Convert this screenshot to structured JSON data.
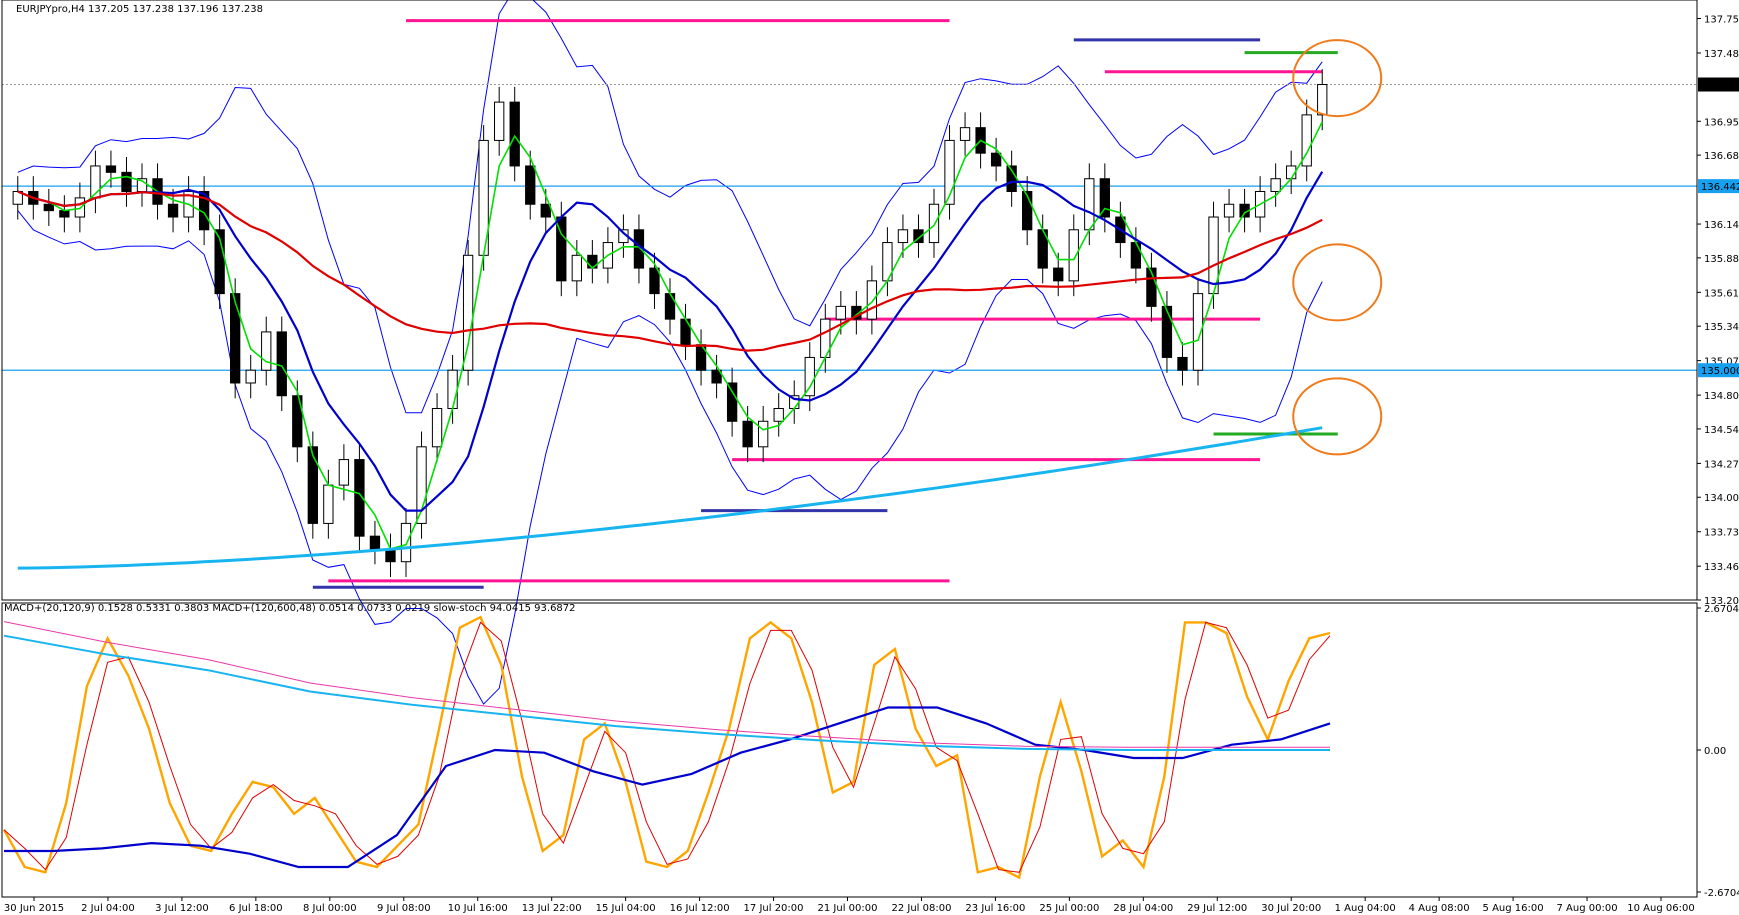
{
  "header": {
    "main": "EURJPYpro,H4  137.205 137.238 137.196 137.238",
    "sub": "MACD+(20,120,9) 0.1528 0.5331 0.3803  MACD+(120,600,48) 0.0514 0.0733 0.0219  slow-stoch 94.0415 93.6872"
  },
  "price_axis": {
    "ticks": [
      "137.755",
      "137.485",
      "136.950",
      "136.685",
      "136.145",
      "135.880",
      "135.610",
      "135.345",
      "135.075",
      "134.805",
      "134.540",
      "134.270",
      "134.005",
      "133.735",
      "133.465",
      "133.200"
    ],
    "tick_values": [
      137.755,
      137.485,
      136.95,
      136.685,
      136.145,
      135.88,
      135.61,
      135.345,
      135.075,
      134.805,
      134.54,
      134.27,
      134.005,
      133.735,
      133.465,
      133.2
    ],
    "current_price_label": "137.238",
    "level_high_label": "136.442",
    "level_low_label": "135.000"
  },
  "indicator_axis": {
    "ticks": [
      "2.6704",
      "0.00",
      "-2.6704"
    ]
  },
  "time_axis": {
    "labels": [
      "30 Jun 2015",
      "2 Jul 04:00",
      "3 Jul 12:00",
      "6 Jul 18:00",
      "8 Jul 00:00",
      "9 Jul 08:00",
      "10 Jul 16:00",
      "13 Jul 22:00",
      "15 Jul 04:00",
      "16 Jul 12:00",
      "17 Jul 20:00",
      "21 Jul 00:00",
      "22 Jul 08:00",
      "23 Jul 16:00",
      "25 Jul 00:00",
      "28 Jul 04:00",
      "29 Jul 12:00",
      "30 Jul 20:00",
      "1 Aug 04:00",
      "4 Aug 08:00",
      "5 Aug 16:00",
      "7 Aug 00:00",
      "10 Aug 06:00"
    ]
  },
  "colors": {
    "bollinger": "#0000ff",
    "ema_fast": "#00e000",
    "ema_mid": "#0000cc",
    "sma_slow": "#e00000",
    "sma_very_slow": "#18b4f0",
    "support_resistance": "#ff1493",
    "swing_blue": "#3333aa",
    "swing_green": "#22aa22",
    "highlight_circle": "#f07a1a",
    "stoch": "#ffa500",
    "stoch_signal": "#e00000",
    "macd_fast": "#0000cc",
    "macd_slow": "#18b4f0",
    "macd_slow_signal": "#e838a8"
  },
  "chart_data": [
    {
      "type": "candlestick",
      "symbol": "EURJPYpro",
      "timeframe": "H4",
      "ylim": [
        133.2,
        137.9
      ],
      "horizontal_levels": [
        136.442,
        135.0
      ],
      "current_price": 137.238,
      "candles_close": [
        136.4,
        136.3,
        136.25,
        136.2,
        136.35,
        136.6,
        136.55,
        136.4,
        136.5,
        136.3,
        136.2,
        136.4,
        136.1,
        135.6,
        134.9,
        135.0,
        135.3,
        134.8,
        134.4,
        133.8,
        134.1,
        134.3,
        133.7,
        133.6,
        133.5,
        133.8,
        134.4,
        134.7,
        135.0,
        135.9,
        136.8,
        137.1,
        136.6,
        136.3,
        136.2,
        135.7,
        135.9,
        135.8,
        136.0,
        136.1,
        135.8,
        135.6,
        135.4,
        135.2,
        135.0,
        134.9,
        134.6,
        134.4,
        134.6,
        134.7,
        134.8,
        135.1,
        135.4,
        135.5,
        135.4,
        135.7,
        136.0,
        136.1,
        136.0,
        136.3,
        136.8,
        136.9,
        136.7,
        136.6,
        136.4,
        136.1,
        135.8,
        135.7,
        136.1,
        136.5,
        136.2,
        136.0,
        135.8,
        135.5,
        135.1,
        135.0,
        135.6,
        136.2,
        136.3,
        136.2,
        136.4,
        136.5,
        136.6,
        137.0,
        137.238
      ]
    },
    {
      "type": "line",
      "name": "slow-stoch",
      "ylim": [
        -2.6704,
        2.6704
      ],
      "values": [
        -1.5,
        -2.2,
        -2.3,
        -1.0,
        1.2,
        2.1,
        1.4,
        0.4,
        -1.0,
        -1.8,
        -1.9,
        -1.2,
        -0.6,
        -0.7,
        -1.2,
        -0.9,
        -1.5,
        -2.1,
        -2.2,
        -1.8,
        -1.4,
        0.4,
        2.3,
        2.5,
        1.6,
        -0.5,
        -1.9,
        -1.6,
        0.2,
        0.5,
        -0.6,
        -2.1,
        -2.2,
        -1.9,
        -0.8,
        0.4,
        2.1,
        2.4,
        2.1,
        0.9,
        -0.8,
        -0.6,
        1.6,
        1.9,
        0.4,
        -0.3,
        -0.1,
        -2.3,
        -2.2,
        -2.4,
        -0.5,
        0.9,
        -0.4,
        -2.0,
        -1.7,
        -2.2,
        -0.5,
        2.4,
        2.4,
        2.2,
        1.0,
        0.2,
        1.3,
        2.1,
        2.2
      ]
    },
    {
      "type": "line",
      "name": "MACD+(20,120,9)",
      "ylim": [
        -2.6704,
        2.6704
      ],
      "values": [
        -1.9,
        -1.9,
        -1.85,
        -1.75,
        -1.8,
        -1.95,
        -2.2,
        -2.2,
        -1.6,
        -0.3,
        0.0,
        -0.05,
        -0.4,
        -0.65,
        -0.45,
        -0.05,
        0.2,
        0.5,
        0.8,
        0.8,
        0.5,
        0.1,
        0.0,
        -0.15,
        -0.15,
        0.1,
        0.2,
        0.5
      ]
    },
    {
      "type": "line",
      "name": "MACD+(120,600,48)",
      "ylim": [
        -2.6704,
        2.6704
      ],
      "values": [
        2.15,
        1.8,
        1.5,
        1.1,
        0.85,
        0.65,
        0.45,
        0.3,
        0.18,
        0.08,
        0.02,
        0.0,
        0.0,
        0.0
      ]
    }
  ]
}
